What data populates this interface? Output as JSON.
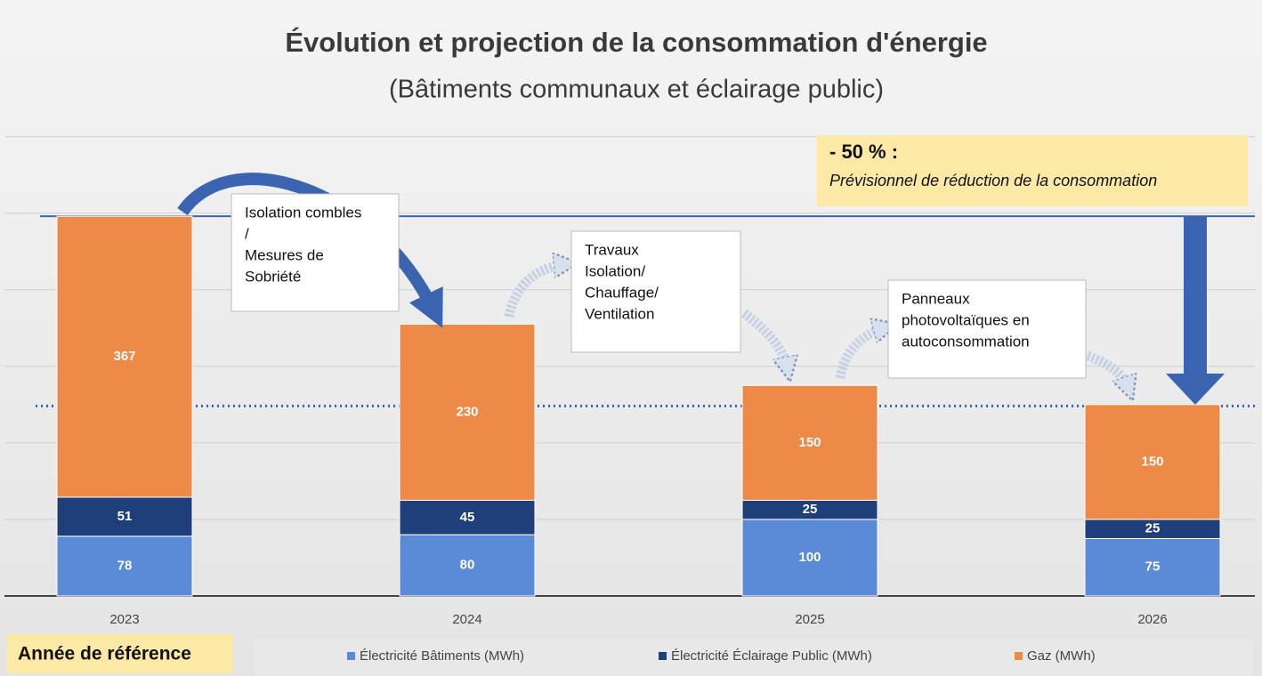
{
  "chart_data": {
    "type": "stacked_bar",
    "title": "Évolution et projection de la consommation d'énergie",
    "subtitle": "(Bâtiments communaux et éclairage public)",
    "categories": [
      "2023",
      "2024",
      "2025",
      "2026"
    ],
    "series": [
      {
        "name": "Électricité Bâtiments (MWh)",
        "color": "#5b8bd6",
        "values": [
          78,
          80,
          100,
          75
        ]
      },
      {
        "name": "Électricité Éclairage Public (MWh)",
        "color": "#1f3f7a",
        "values": [
          51,
          45,
          25,
          25
        ]
      },
      {
        "name": "Gaz (MWh)",
        "color": "#ee8a47",
        "values": [
          367,
          230,
          150,
          150
        ]
      }
    ],
    "ylim": [
      0,
      610
    ],
    "yticks": [
      0,
      100,
      200,
      300,
      400,
      500,
      600
    ],
    "grid": true,
    "reference_lines": [
      {
        "value": 496,
        "style": "solid"
      },
      {
        "value": 248,
        "style": "dotted"
      }
    ],
    "reference_label": "Année de référence",
    "highlight": {
      "title": "- 50 % :",
      "text": "Prévisionnel de réduction de la consommation"
    },
    "annotations": [
      {
        "lines": [
          "Isolation combles",
          "/",
          "Mesures de",
          "Sobriété"
        ]
      },
      {
        "lines": [
          "Travaux",
          "Isolation/",
          "Chauffage/",
          "Ventilation"
        ]
      },
      {
        "lines": [
          "Panneaux",
          "photovoltaïques en",
          "autoconsommation"
        ]
      }
    ],
    "legend": "bottom"
  }
}
